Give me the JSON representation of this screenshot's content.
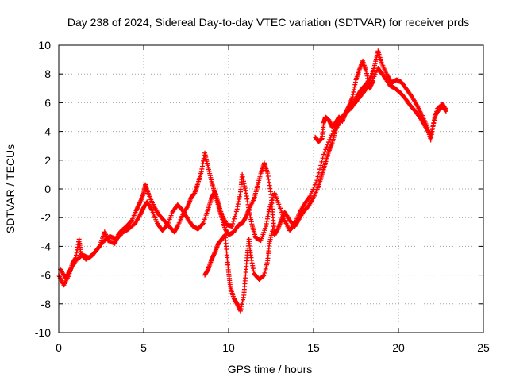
{
  "chart_data": {
    "type": "scatter",
    "title": "Day 238 of 2024, Sidereal Day-to-day VTEC variation (SDTVAR) for receiver prds",
    "xlabel": "GPS time / hours",
    "ylabel": "SDTVAR / TECUs",
    "xlim": [
      0,
      25
    ],
    "ylim": [
      -10,
      10
    ],
    "x_ticks": [
      0,
      5,
      10,
      15,
      20,
      25
    ],
    "y_ticks": [
      -10,
      -8,
      -6,
      -4,
      -2,
      0,
      2,
      4,
      6,
      8,
      10
    ],
    "grid": true,
    "marker": "+",
    "color": "#ff0000",
    "series": [
      {
        "name": "trace-1",
        "points": [
          [
            0.0,
            -6.0
          ],
          [
            0.3,
            -6.7
          ],
          [
            0.6,
            -6.0
          ],
          [
            0.8,
            -5.2
          ],
          [
            1.0,
            -4.8
          ],
          [
            1.2,
            -3.5
          ],
          [
            1.3,
            -4.5
          ],
          [
            1.6,
            -4.9
          ],
          [
            2.0,
            -4.6
          ],
          [
            2.4,
            -4.0
          ],
          [
            2.7,
            -3.0
          ],
          [
            2.9,
            -3.6
          ],
          [
            3.3,
            -3.8
          ],
          [
            3.5,
            -3.2
          ],
          [
            3.7,
            -2.9
          ],
          [
            4.0,
            -2.6
          ],
          [
            4.3,
            -2.2
          ],
          [
            4.6,
            -1.4
          ],
          [
            4.8,
            -0.9
          ],
          [
            5.0,
            -0.3
          ],
          [
            5.1,
            0.3
          ],
          [
            5.3,
            -0.4
          ],
          [
            5.6,
            -1.2
          ],
          [
            5.9,
            -1.8
          ],
          [
            6.2,
            -2.2
          ],
          [
            6.5,
            -2.6
          ],
          [
            6.8,
            -3.0
          ],
          [
            7.0,
            -2.6
          ],
          [
            7.3,
            -1.8
          ],
          [
            7.6,
            -1.2
          ],
          [
            7.8,
            -0.6
          ],
          [
            8.0,
            -0.3
          ],
          [
            8.2,
            0.4
          ],
          [
            8.4,
            1.2
          ],
          [
            8.6,
            2.5
          ],
          [
            8.8,
            1.5
          ],
          [
            9.0,
            0.5
          ],
          [
            9.2,
            -0.3
          ],
          [
            9.4,
            -1.2
          ],
          [
            9.6,
            -2.0
          ],
          [
            9.8,
            -2.8
          ],
          [
            10.0,
            -3.2
          ],
          [
            10.3,
            -3.0
          ],
          [
            10.6,
            -2.5
          ],
          [
            10.8,
            -2.4
          ],
          [
            11.0,
            -2.0
          ],
          [
            11.2,
            -1.4
          ],
          [
            11.5,
            -0.7
          ],
          [
            11.7,
            0.2
          ],
          [
            11.9,
            1.1
          ],
          [
            12.1,
            1.8
          ],
          [
            12.3,
            1.1
          ],
          [
            12.5,
            -0.4
          ],
          [
            12.6,
            -1.8
          ],
          [
            12.7,
            -3.2
          ],
          [
            12.9,
            -2.8
          ],
          [
            13.1,
            -2.2
          ],
          [
            13.3,
            -1.6
          ],
          [
            13.6,
            -2.2
          ],
          [
            13.9,
            -2.6
          ],
          [
            14.1,
            -2.2
          ],
          [
            14.4,
            -1.6
          ],
          [
            14.7,
            -1.2
          ],
          [
            15.0,
            -0.6
          ],
          [
            15.3,
            0.2
          ],
          [
            15.5,
            1.0
          ],
          [
            15.7,
            1.8
          ],
          [
            15.9,
            2.6
          ],
          [
            16.1,
            3.2
          ],
          [
            16.3,
            4.1
          ],
          [
            16.6,
            4.8
          ],
          [
            17.0,
            5.4
          ],
          [
            17.4,
            6.0
          ],
          [
            17.6,
            6.5
          ],
          [
            17.8,
            6.9
          ],
          [
            18.1,
            7.3
          ],
          [
            18.4,
            7.8
          ],
          [
            18.6,
            8.6
          ],
          [
            18.8,
            9.6
          ],
          [
            19.0,
            8.8
          ],
          [
            19.3,
            8.0
          ],
          [
            19.6,
            7.4
          ],
          [
            19.9,
            7.6
          ],
          [
            20.2,
            7.4
          ],
          [
            20.5,
            6.9
          ],
          [
            20.8,
            6.4
          ],
          [
            21.1,
            5.8
          ],
          [
            21.4,
            5.1
          ],
          [
            21.7,
            4.3
          ],
          [
            21.9,
            3.4
          ],
          [
            22.1,
            4.8
          ],
          [
            22.3,
            5.6
          ],
          [
            22.6,
            5.9
          ],
          [
            22.8,
            5.4
          ]
        ]
      },
      {
        "name": "trace-2",
        "points": [
          [
            0.1,
            -5.6
          ],
          [
            0.4,
            -6.2
          ],
          [
            0.7,
            -5.6
          ],
          [
            1.0,
            -5.0
          ],
          [
            1.4,
            -4.6
          ],
          [
            1.8,
            -4.8
          ],
          [
            2.2,
            -4.3
          ],
          [
            2.6,
            -3.7
          ],
          [
            3.0,
            -3.3
          ],
          [
            3.4,
            -3.5
          ],
          [
            3.8,
            -3.0
          ],
          [
            4.1,
            -2.8
          ],
          [
            4.5,
            -2.4
          ],
          [
            4.8,
            -1.8
          ],
          [
            5.0,
            -1.3
          ],
          [
            5.2,
            -0.9
          ],
          [
            5.5,
            -1.5
          ],
          [
            5.8,
            -2.4
          ],
          [
            6.1,
            -2.9
          ],
          [
            6.4,
            -2.5
          ],
          [
            6.7,
            -1.6
          ],
          [
            7.0,
            -1.1
          ],
          [
            7.3,
            -1.5
          ],
          [
            7.6,
            -2.1
          ],
          [
            7.9,
            -2.6
          ],
          [
            8.2,
            -2.8
          ],
          [
            8.5,
            -2.4
          ],
          [
            8.8,
            -1.4
          ],
          [
            9.0,
            -0.6
          ],
          [
            9.2,
            -0.2
          ],
          [
            9.4,
            -1.0
          ],
          [
            9.6,
            -1.8
          ],
          [
            9.9,
            -2.5
          ],
          [
            10.2,
            -2.6
          ],
          [
            10.5,
            -1.4
          ],
          [
            10.7,
            -0.2
          ],
          [
            10.8,
            1.0
          ],
          [
            11.0,
            -0.1
          ],
          [
            11.2,
            -1.5
          ],
          [
            11.4,
            -2.6
          ],
          [
            11.6,
            -3.4
          ],
          [
            11.9,
            -3.6
          ],
          [
            12.2,
            -2.6
          ],
          [
            12.4,
            -1.4
          ],
          [
            12.7,
            -0.3
          ],
          [
            13.0,
            -1.2
          ],
          [
            13.3,
            -2.2
          ],
          [
            13.6,
            -2.9
          ],
          [
            13.9,
            -2.4
          ],
          [
            14.2,
            -1.6
          ],
          [
            14.5,
            -1.0
          ],
          [
            14.8,
            -0.5
          ],
          [
            15.2,
            0.6
          ],
          [
            15.6,
            2.4
          ],
          [
            16.0,
            3.6
          ],
          [
            16.4,
            4.6
          ],
          [
            16.8,
            5.2
          ],
          [
            17.2,
            5.6
          ],
          [
            17.6,
            6.2
          ],
          [
            18.0,
            6.8
          ],
          [
            18.4,
            7.4
          ],
          [
            18.8,
            8.4
          ],
          [
            19.1,
            7.9
          ],
          [
            19.5,
            7.2
          ],
          [
            19.8,
            7.0
          ],
          [
            20.1,
            6.7
          ],
          [
            20.4,
            6.3
          ],
          [
            20.7,
            5.8
          ],
          [
            21.0,
            5.4
          ],
          [
            21.3,
            4.9
          ],
          [
            21.6,
            4.3
          ],
          [
            21.9,
            3.7
          ],
          [
            22.2,
            5.2
          ],
          [
            22.5,
            5.7
          ],
          [
            22.8,
            5.6
          ]
        ]
      },
      {
        "name": "trace-3",
        "points": [
          [
            8.6,
            -6.0
          ],
          [
            8.8,
            -5.6
          ],
          [
            9.0,
            -4.9
          ],
          [
            9.2,
            -4.4
          ],
          [
            9.4,
            -3.8
          ],
          [
            9.6,
            -3.5
          ],
          [
            9.8,
            -3.2
          ],
          [
            9.9,
            -4.6
          ],
          [
            10.0,
            -5.8
          ],
          [
            10.1,
            -6.8
          ],
          [
            10.3,
            -7.6
          ],
          [
            10.5,
            -8.0
          ],
          [
            10.7,
            -8.5
          ],
          [
            10.9,
            -7.4
          ],
          [
            11.0,
            -6.0
          ],
          [
            11.1,
            -4.6
          ],
          [
            11.2,
            -3.5
          ],
          [
            11.3,
            -4.6
          ],
          [
            11.5,
            -5.9
          ],
          [
            11.8,
            -6.3
          ],
          [
            12.1,
            -6.0
          ],
          [
            12.3,
            -5.0
          ],
          [
            12.4,
            -3.8
          ],
          [
            12.6,
            -2.8
          ]
        ]
      },
      {
        "name": "trace-4",
        "points": [
          [
            15.1,
            3.6
          ],
          [
            15.3,
            3.3
          ],
          [
            15.5,
            3.5
          ],
          [
            15.6,
            4.6
          ],
          [
            15.7,
            5.0
          ],
          [
            15.9,
            4.8
          ],
          [
            16.1,
            4.3
          ],
          [
            16.3,
            4.6
          ],
          [
            16.5,
            5.0
          ],
          [
            16.7,
            4.7
          ],
          [
            16.9,
            5.3
          ],
          [
            17.1,
            5.8
          ],
          [
            17.3,
            6.4
          ],
          [
            17.5,
            7.6
          ],
          [
            17.7,
            8.3
          ],
          [
            17.9,
            8.9
          ],
          [
            18.1,
            8.2
          ],
          [
            18.3,
            7.0
          ],
          [
            18.5,
            7.5
          ]
        ]
      }
    ]
  }
}
